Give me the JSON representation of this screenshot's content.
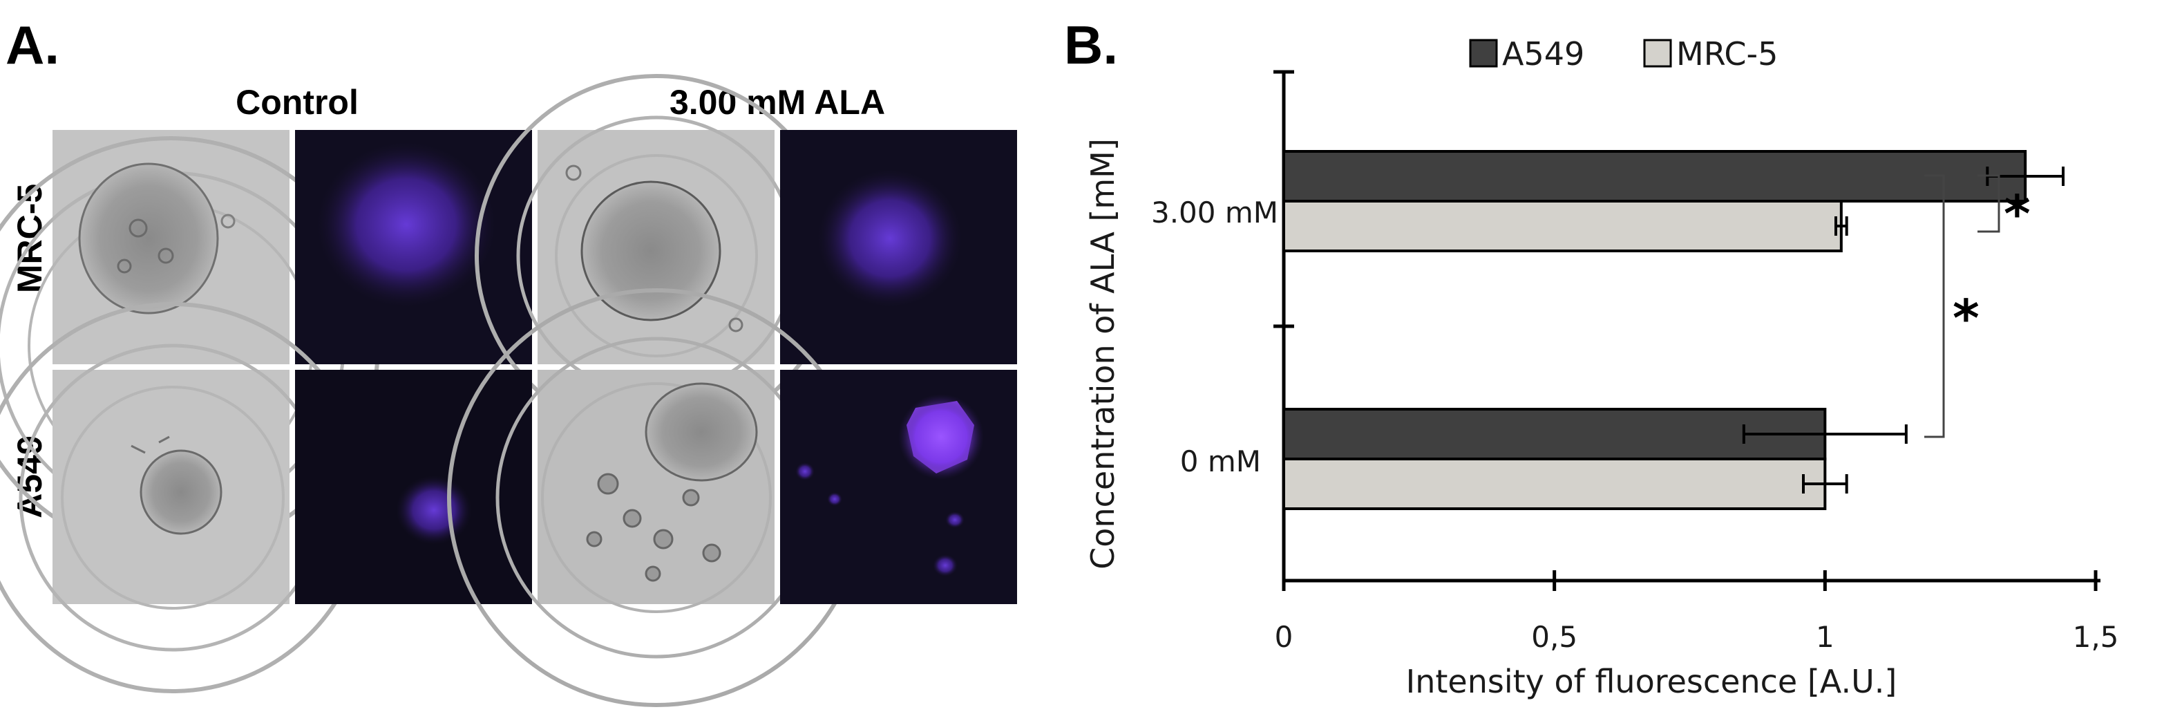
{
  "panel_a": {
    "letter": "A.",
    "columns": [
      "Control",
      "3.00 mM ALA"
    ],
    "rows": [
      "MRC-5",
      "A549"
    ],
    "colors": {
      "brightfield_bg": "#bcbcbc",
      "fluorescence_bg": "#0f0c1e",
      "fluorescence_glow": "#5a2fc0"
    }
  },
  "panel_b": {
    "letter": "B.",
    "significance_marks": [
      "*",
      "*"
    ]
  },
  "chart_data": {
    "type": "bar",
    "orientation": "horizontal",
    "categories": [
      "3.00 mM",
      "0 mM"
    ],
    "series": [
      {
        "name": "A549",
        "values": [
          1.37,
          1.0
        ],
        "errors": [
          0.07,
          0.15
        ],
        "color": "#404040"
      },
      {
        "name": "MRC-5",
        "values": [
          1.03,
          1.0
        ],
        "errors": [
          0.01,
          0.04
        ],
        "color": "#d4d2cc"
      }
    ],
    "xlabel": "Intensity of fluorescence [A.U.]",
    "ylabel": "Concentration of ALA [mM]",
    "xlim": [
      0,
      1.5
    ],
    "xticks": [
      0,
      0.5,
      1,
      1.5
    ],
    "xtick_labels": [
      "0",
      "0,5",
      "1",
      "1,5"
    ],
    "grid": false,
    "legend_position": "top"
  }
}
